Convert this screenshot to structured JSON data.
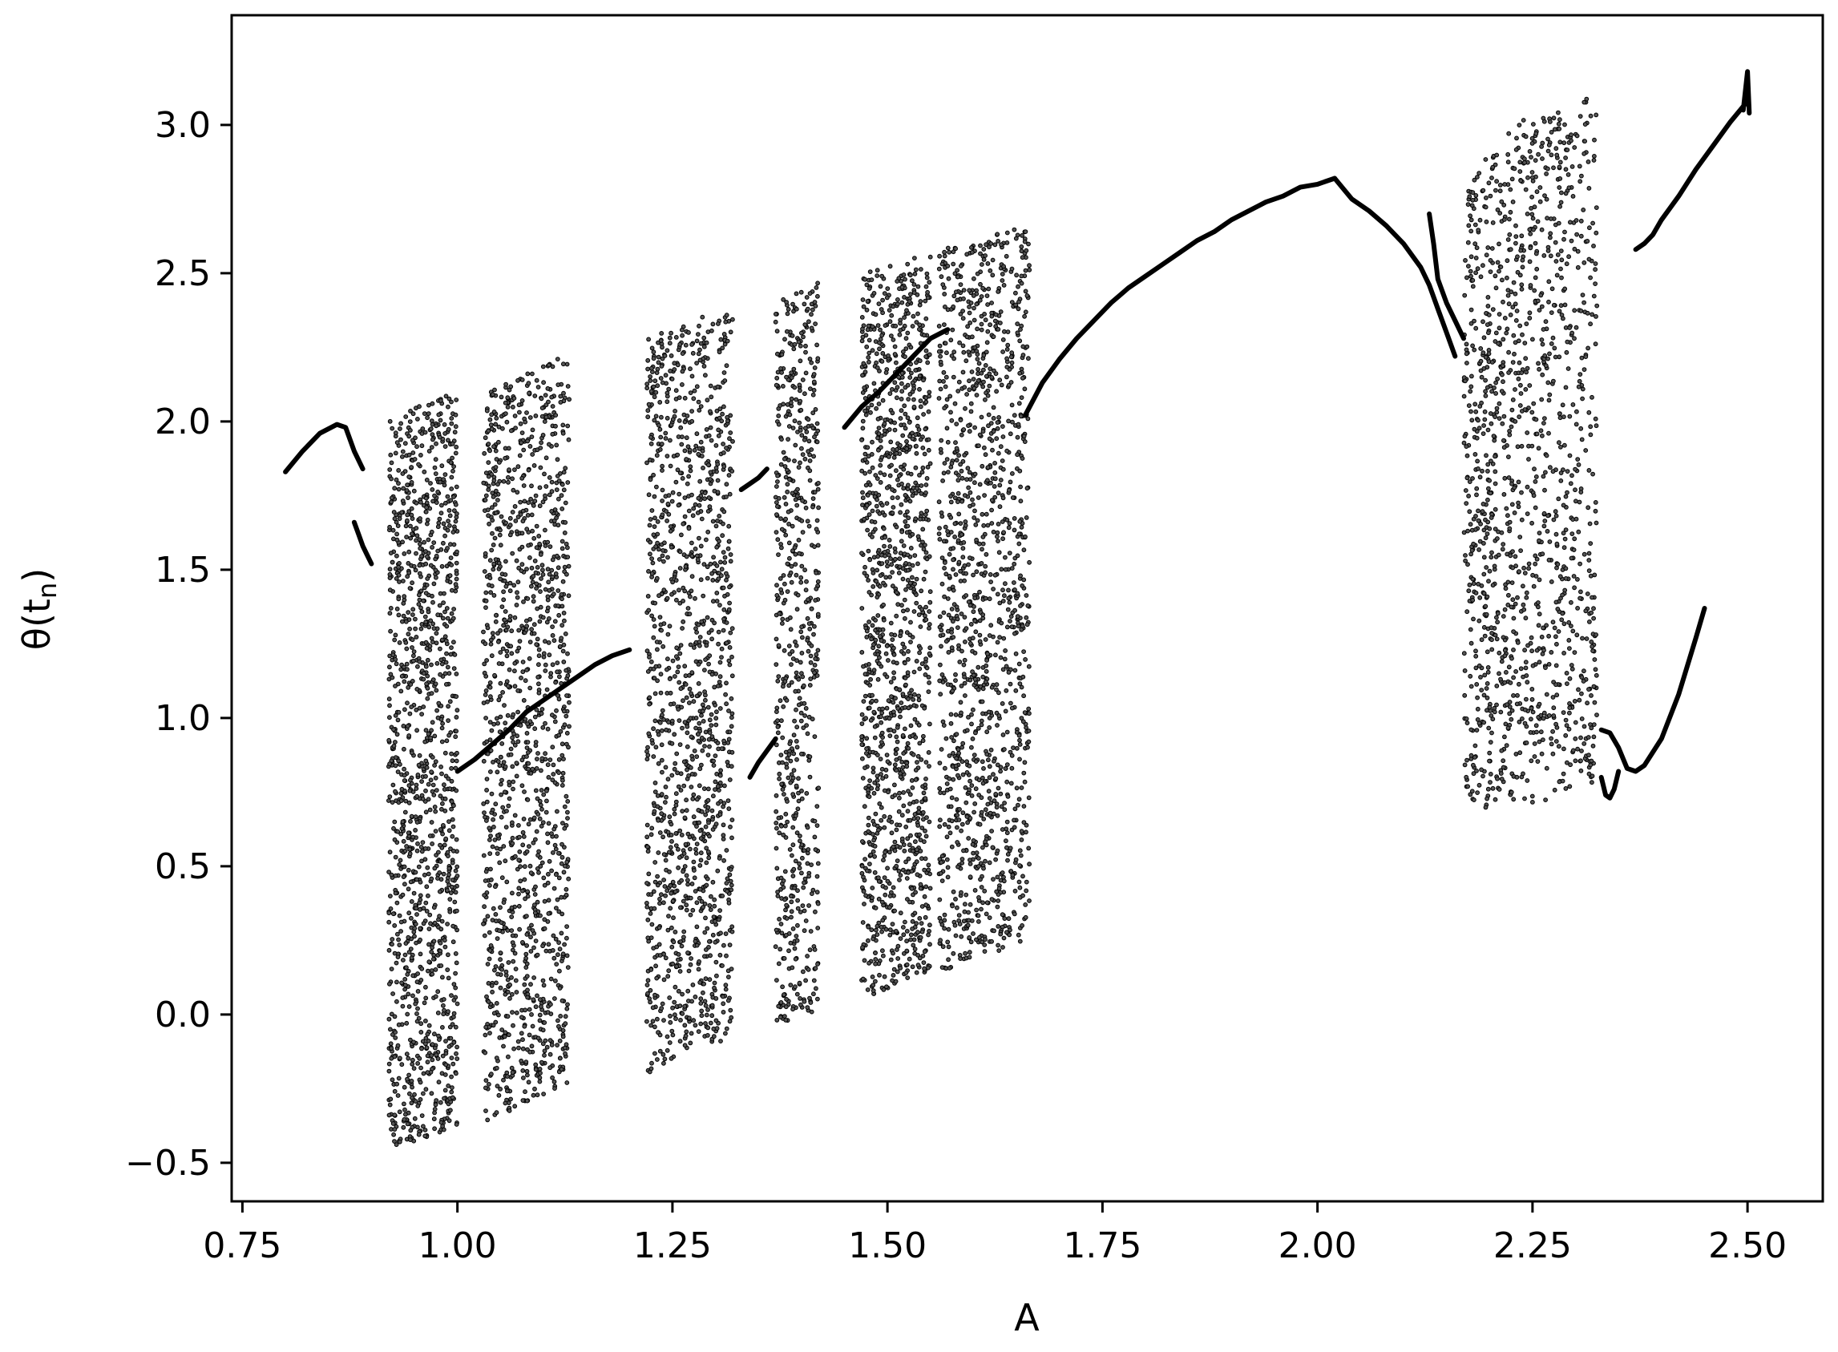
{
  "chart_data": {
    "type": "scatter",
    "title": "",
    "xlabel": "A",
    "ylabel": {
      "base": "θ",
      "dot": "˙",
      "open": "(t",
      "sub": "n",
      "close": ")"
    },
    "xlim": [
      0.7375,
      2.5875
    ],
    "ylim": [
      -0.63,
      3.37
    ],
    "xticks": [
      0.75,
      1.0,
      1.25,
      1.5,
      1.75,
      2.0,
      2.25,
      2.5
    ],
    "xtick_labels": [
      "0.75",
      "1.00",
      "1.25",
      "1.50",
      "1.75",
      "2.00",
      "2.25",
      "2.50"
    ],
    "yticks": [
      -0.5,
      0.0,
      0.5,
      1.0,
      1.5,
      2.0,
      2.5,
      3.0
    ],
    "ytick_labels": [
      "−0.5",
      "0.0",
      "0.5",
      "1.0",
      "1.5",
      "2.0",
      "2.5",
      "3.0"
    ],
    "grid": false,
    "legend": "none",
    "marker_color": "#000000",
    "series": [
      {
        "kind": "curves",
        "description_points": [
          {
            "x": [
              0.8,
              0.82,
              0.84,
              0.86,
              0.87,
              0.88,
              0.89
            ],
            "y": [
              1.83,
              1.9,
              1.96,
              1.99,
              1.98,
              1.9,
              1.84
            ]
          },
          {
            "x": [
              0.88,
              0.885,
              0.89,
              0.895,
              0.9
            ],
            "y": [
              1.66,
              1.62,
              1.58,
              1.55,
              1.52
            ]
          },
          {
            "x": [
              1.0,
              1.02,
              1.04,
              1.06,
              1.08,
              1.1,
              1.12,
              1.14,
              1.16,
              1.18,
              1.2
            ],
            "y": [
              0.82,
              0.86,
              0.91,
              0.96,
              1.02,
              1.06,
              1.1,
              1.14,
              1.18,
              1.21,
              1.23
            ]
          },
          {
            "x": [
              1.33,
              1.34,
              1.35,
              1.36
            ],
            "y": [
              1.77,
              1.79,
              1.81,
              1.84
            ]
          },
          {
            "x": [
              1.34,
              1.35,
              1.36,
              1.37
            ],
            "y": [
              0.8,
              0.85,
              0.89,
              0.93
            ]
          },
          {
            "x": [
              1.45,
              1.47,
              1.49,
              1.51,
              1.53,
              1.55,
              1.57
            ],
            "y": [
              1.98,
              2.05,
              2.1,
              2.16,
              2.22,
              2.28,
              2.31
            ]
          },
          {
            "x": [
              1.66,
              1.68,
              1.7,
              1.72,
              1.74,
              1.76,
              1.78,
              1.8,
              1.82,
              1.84,
              1.86,
              1.88,
              1.9,
              1.92,
              1.94,
              1.96,
              1.98,
              2.0,
              2.02
            ],
            "y": [
              2.02,
              2.13,
              2.21,
              2.28,
              2.34,
              2.4,
              2.45,
              2.49,
              2.53,
              2.57,
              2.61,
              2.64,
              2.68,
              2.71,
              2.74,
              2.76,
              2.79,
              2.8,
              2.82
            ]
          },
          {
            "x": [
              2.02,
              2.04,
              2.06,
              2.08,
              2.1,
              2.12,
              2.13,
              2.14,
              2.15,
              2.16
            ],
            "y": [
              2.82,
              2.75,
              2.71,
              2.66,
              2.6,
              2.52,
              2.46,
              2.38,
              2.3,
              2.22
            ]
          },
          {
            "x": [
              2.13,
              2.135,
              2.14,
              2.15,
              2.16,
              2.17
            ],
            "y": [
              2.7,
              2.6,
              2.48,
              2.4,
              2.34,
              2.28
            ]
          },
          {
            "x": [
              2.37,
              2.38,
              2.39,
              2.4,
              2.42,
              2.44,
              2.46,
              2.48,
              2.5
            ],
            "y": [
              2.58,
              2.6,
              2.63,
              2.68,
              2.76,
              2.85,
              2.93,
              3.01,
              3.08
            ]
          },
          {
            "x": [
              2.495,
              2.5,
              2.502
            ],
            "y": [
              3.05,
              3.18,
              3.04
            ]
          },
          {
            "x": [
              2.33,
              2.34,
              2.35,
              2.36,
              2.37,
              2.38,
              2.4,
              2.42,
              2.44,
              2.45
            ],
            "y": [
              0.96,
              0.95,
              0.9,
              0.83,
              0.82,
              0.84,
              0.93,
              1.08,
              1.27,
              1.37
            ]
          },
          {
            "x": [
              2.33,
              2.335,
              2.34,
              2.345,
              2.35
            ],
            "y": [
              0.8,
              0.74,
              0.73,
              0.76,
              0.82
            ]
          }
        ]
      },
      {
        "kind": "chaotic_bands",
        "bands": [
          {
            "x": [
              0.92,
              0.96
            ],
            "y_bottom": [
              -0.45,
              -0.42
            ],
            "y_top": [
              2.02,
              2.06
            ]
          },
          {
            "x": [
              0.96,
              1.0
            ],
            "y_bottom": [
              -0.42,
              -0.38
            ],
            "y_top": [
              2.06,
              2.1
            ]
          },
          {
            "x": [
              1.03,
              1.08
            ],
            "y_bottom": [
              -0.37,
              -0.3
            ],
            "y_top": [
              2.1,
              2.16
            ]
          },
          {
            "x": [
              1.08,
              1.13
            ],
            "y_bottom": [
              -0.3,
              -0.24
            ],
            "y_top": [
              2.16,
              2.23
            ]
          },
          {
            "x": [
              1.22,
              1.27
            ],
            "y_bottom": [
              -0.2,
              -0.14
            ],
            "y_top": [
              2.28,
              2.34
            ]
          },
          {
            "x": [
              1.27,
              1.32
            ],
            "y_bottom": [
              -0.14,
              -0.08
            ],
            "y_top": [
              2.34,
              2.38
            ]
          },
          {
            "x": [
              1.37,
              1.42
            ],
            "y_bottom": [
              -0.05,
              0.02
            ],
            "y_top": [
              2.4,
              2.47
            ]
          },
          {
            "x": [
              1.47,
              1.51
            ],
            "y_bottom": [
              0.05,
              0.1
            ],
            "y_top": [
              2.51,
              2.55
            ]
          },
          {
            "x": [
              1.51,
              1.55
            ],
            "y_bottom": [
              0.1,
              0.15
            ],
            "y_top": [
              2.55,
              2.58
            ]
          },
          {
            "x": [
              1.56,
              1.61
            ],
            "y_bottom": [
              0.14,
              0.19
            ],
            "y_top": [
              2.58,
              2.62
            ]
          },
          {
            "x": [
              1.61,
              1.665
            ],
            "y_bottom": [
              0.19,
              0.25
            ],
            "y_top": [
              2.62,
              2.66
            ]
          },
          {
            "x": [
              2.17,
              2.24
            ],
            "y_bottom": [
              0.68,
              0.72
            ],
            "y_top": [
              2.8,
              3.03
            ]
          },
          {
            "x": [
              2.24,
              2.325
            ],
            "y_bottom": [
              0.7,
              0.78
            ],
            "y_top": [
              3.03,
              3.11
            ]
          }
        ]
      }
    ]
  }
}
